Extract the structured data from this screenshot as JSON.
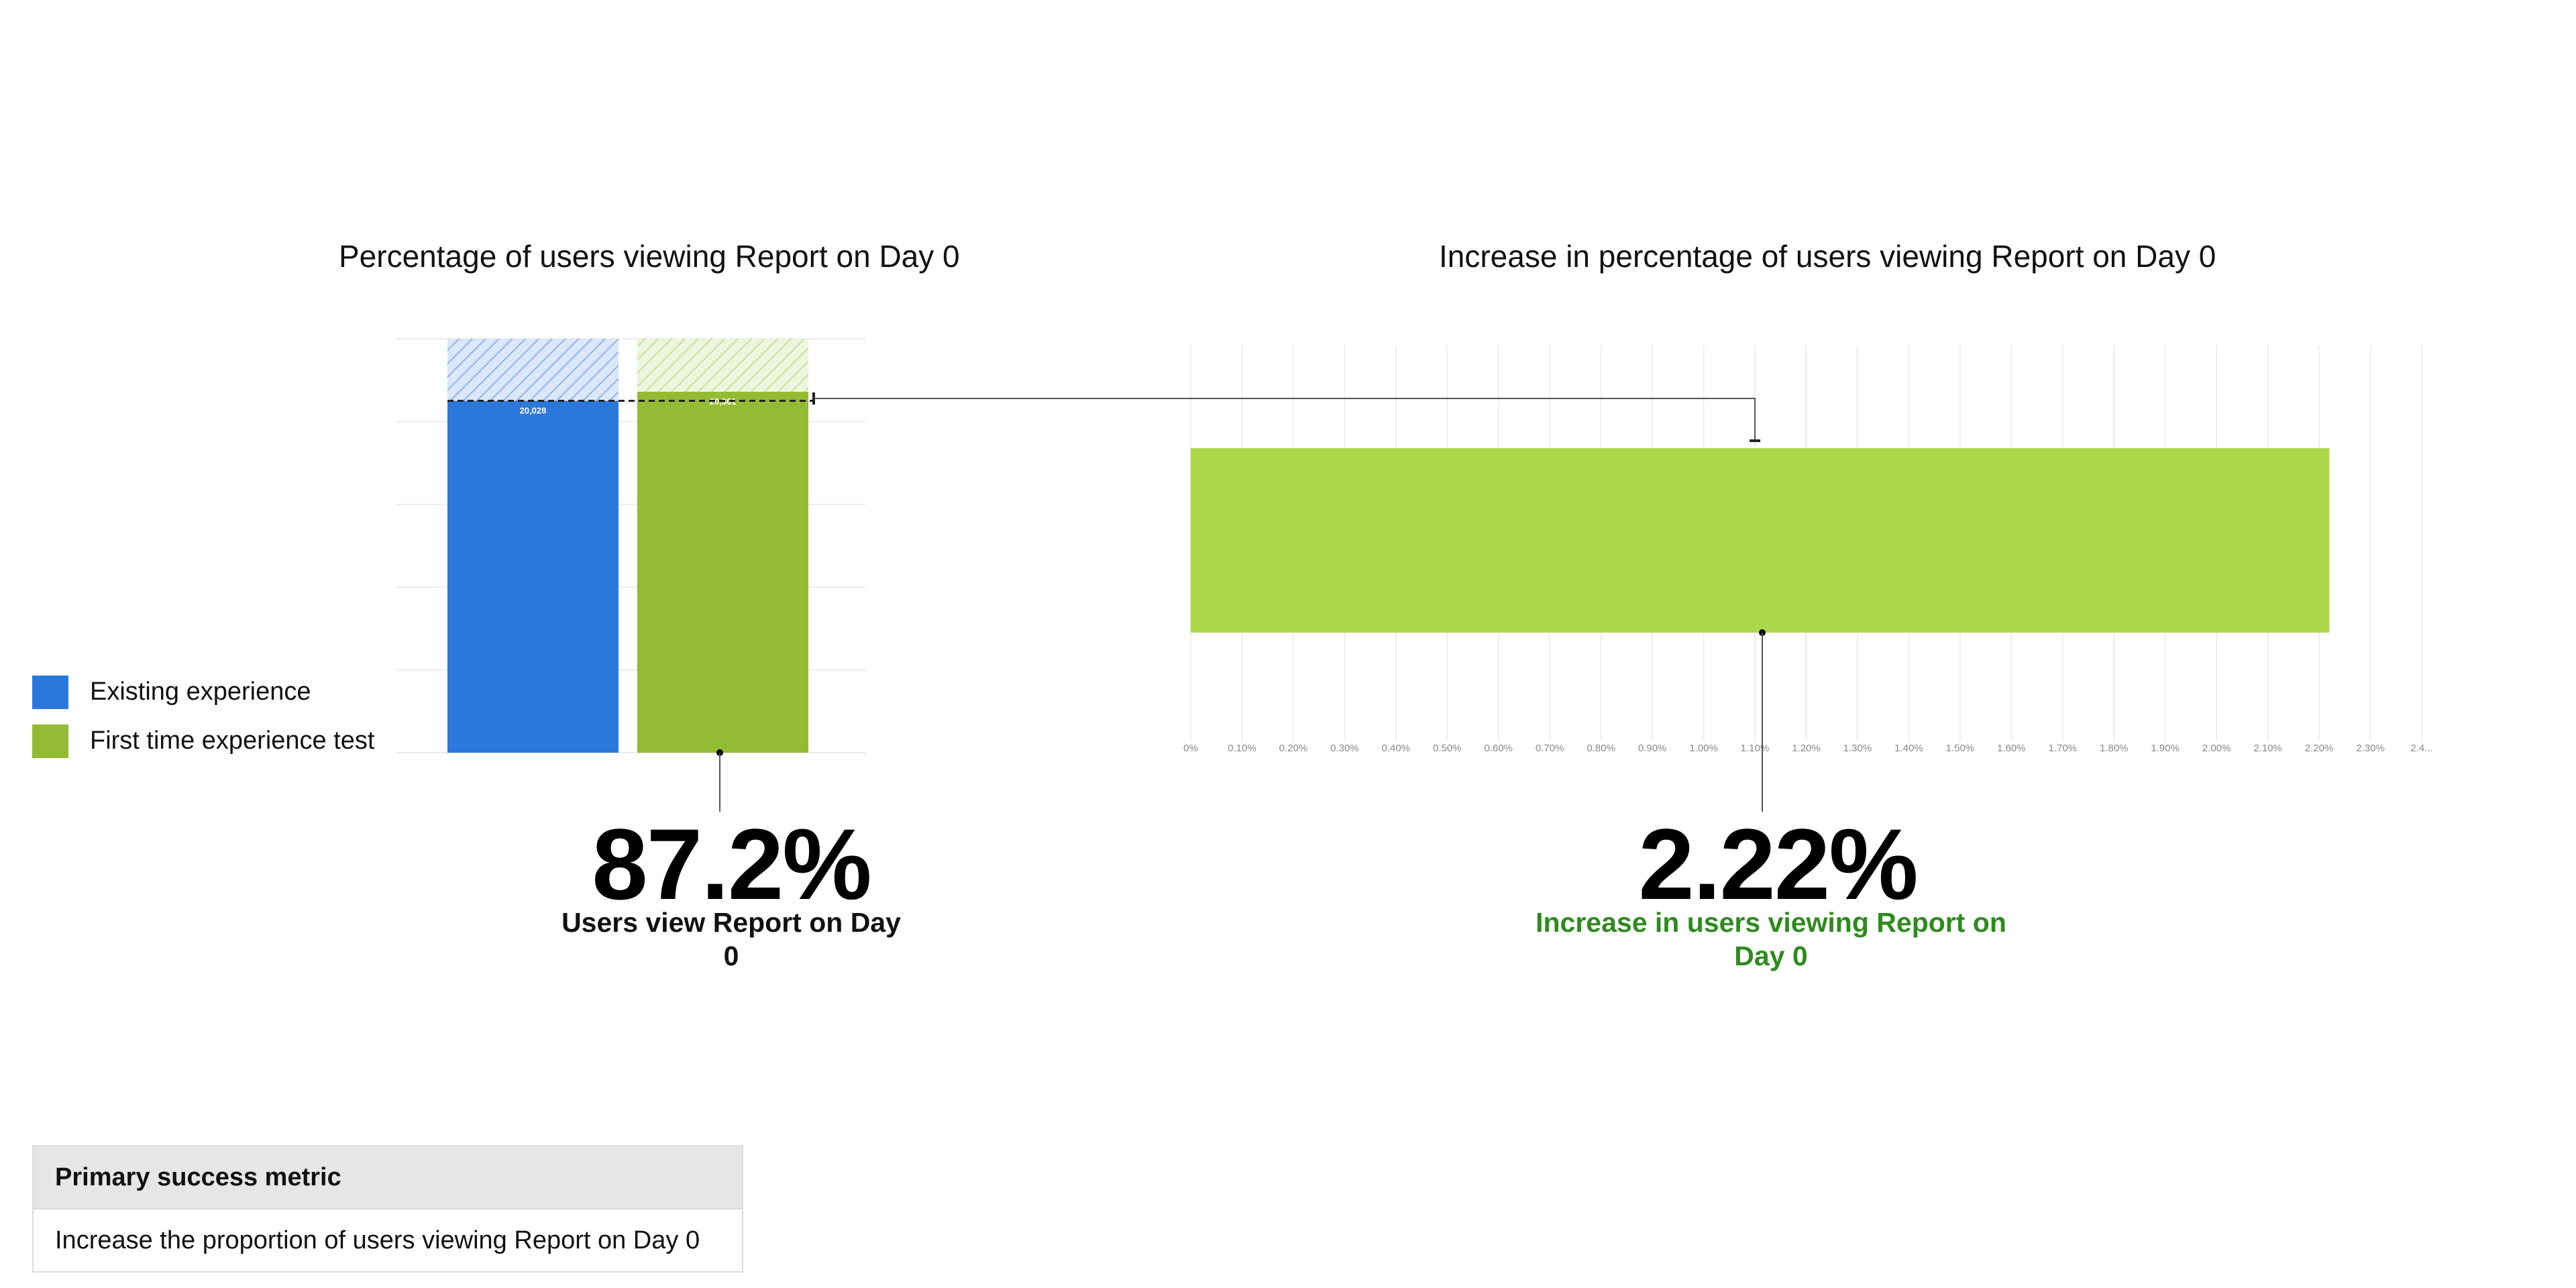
{
  "titles": {
    "left": "Percentage of users viewing Report on Day 0",
    "right": "Increase in percentage of users viewing Report on Day 0"
  },
  "legend": [
    {
      "label": "Existing experience",
      "color": "#2b78dd"
    },
    {
      "label": "First time experience test",
      "color": "#93bb33"
    }
  ],
  "kpi": {
    "left_value": "87.2%",
    "left_label": "Users view Report on Day 0",
    "right_value": "2.22%",
    "right_label": "Increase in users viewing Report on Day 0"
  },
  "metric": {
    "header": "Primary success metric",
    "body": "Increase the proportion of users viewing Report on Day 0"
  },
  "chart_data": [
    {
      "type": "bar",
      "categories": [
        "Existing experience",
        "First time experience test"
      ],
      "values": [
        85.0,
        87.2
      ],
      "ylim": [
        0,
        100
      ],
      "data_labels": [
        "20,028",
        "20,361"
      ],
      "colors": [
        "#2b78dd",
        "#93bb33"
      ],
      "grid": true
    },
    {
      "type": "bar",
      "orientation": "horizontal",
      "values": [
        2.22
      ],
      "color": "#abd84b",
      "error_marker": 1.1,
      "xlim": [
        0,
        2.4
      ],
      "tick_labels": [
        "0%",
        "0.10%",
        "0.20%",
        "0.30%",
        "0.40%",
        "0.50%",
        "0.60%",
        "0.70%",
        "0.80%",
        "0.90%",
        "1.00%",
        "1.10%",
        "1.20%",
        "1.30%",
        "1.40%",
        "1.50%",
        "1.60%",
        "1.70%",
        "1.80%",
        "1.90%",
        "2.00%",
        "2.10%",
        "2.20%",
        "2.30%",
        "2.4..."
      ],
      "grid": true
    }
  ]
}
